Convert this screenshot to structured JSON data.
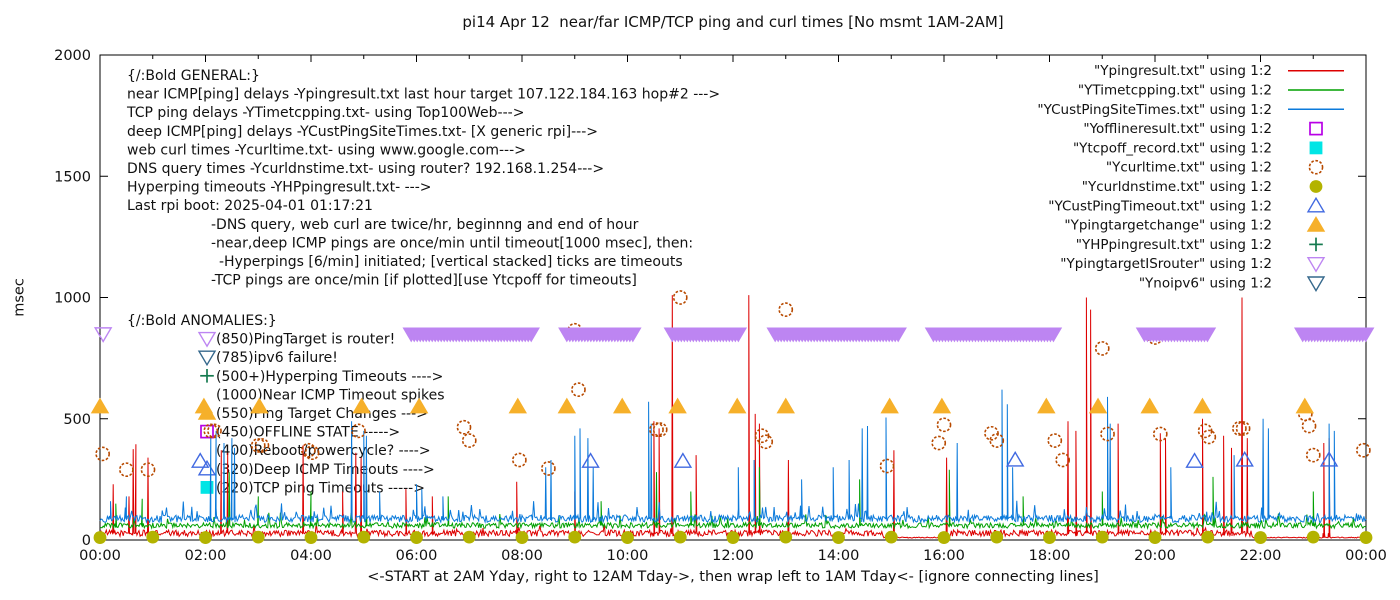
{
  "chart_data": {
    "type": "line",
    "title": "pi14 Apr 12  near/far ICMP/TCP ping and curl times [No msmt 1AM-2AM]",
    "xlabel": "<-START at 2AM Yday, right to 12AM Tday->, then wrap left to 1AM Tday<- [ignore connecting lines]",
    "ylabel": "msec",
    "x_hours_span": 24,
    "x_tick_labels": [
      "00:00",
      "02:00",
      "04:00",
      "06:00",
      "08:00",
      "10:00",
      "12:00",
      "14:00",
      "16:00",
      "18:00",
      "20:00",
      "22:00",
      "00:00"
    ],
    "y_ticks": [
      0,
      500,
      1000,
      1500,
      2000
    ],
    "ylim": [
      0,
      2000
    ],
    "grid": false,
    "legend_position": "top-right-inside",
    "legend": [
      {
        "label": "\"Ypingresult.txt\" using 1:2",
        "sample": "line",
        "color": "#dd0000"
      },
      {
        "label": "\"YTimetcpping.txt\" using 1:2",
        "sample": "line",
        "color": "#00a000"
      },
      {
        "label": "\"YCustPingSiteTimes.txt\" using 1:2",
        "sample": "line",
        "color": "#0b7adb"
      },
      {
        "label": "\"Yofflineresult.txt\" using 1:2",
        "sample": "square-open",
        "color": "#b800e6"
      },
      {
        "label": "\"Ytcpoff_record.txt\" using 1:2",
        "sample": "square-filled",
        "color": "#00e5e5"
      },
      {
        "label": "\"Ycurltime.txt\" using 1:2",
        "sample": "circle-open",
        "color": "#b84a00"
      },
      {
        "label": "\"Ycurldnstime.txt\" using 1:2",
        "sample": "circle-filled",
        "color": "#b3b300"
      },
      {
        "label": "\"YCustPingTimeout.txt\" using 1:2",
        "sample": "triangle-up-open",
        "color": "#4169e1"
      },
      {
        "label": "\"Ypingtargetchange\" using 1:2",
        "sample": "triangle-up-filled",
        "color": "#f6b02a"
      },
      {
        "label": "\"YHPpingresult.txt\" using 1:2",
        "sample": "plus",
        "color": "#157a4f"
      },
      {
        "label": "\"YpingtargetISrouter\" using 1:2",
        "sample": "triangle-down-open",
        "color": "#bd85f2"
      },
      {
        "label": "\"Ynoipv6\" using 1:2",
        "sample": "triangle-down-open",
        "color": "#35688c"
      }
    ],
    "series": [
      {
        "name": "Ypingresult.txt",
        "type": "line",
        "color": "#dd0000",
        "baseline": 28,
        "noise": 13,
        "bump": [
          0.03,
          30
        ],
        "dips": [
          [
            14.85,
            16.1,
            8
          ],
          [
            21.85,
            24,
            8
          ]
        ],
        "spikes": [
          [
            0.25,
            230
          ],
          [
            0.55,
            180
          ],
          [
            0.63,
            375
          ],
          [
            0.68,
            395
          ],
          [
            0.91,
            340
          ],
          [
            2.3,
            370
          ],
          [
            2.42,
            360
          ],
          [
            3.85,
            390
          ],
          [
            4.6,
            200
          ],
          [
            4.85,
            360
          ],
          [
            4.95,
            340
          ],
          [
            5.8,
            210
          ],
          [
            6.3,
            180
          ],
          [
            7.9,
            240
          ],
          [
            9.0,
            200
          ],
          [
            10.5,
            490
          ],
          [
            10.6,
            460
          ],
          [
            10.85,
            1010
          ],
          [
            11.3,
            350
          ],
          [
            12.3,
            1010
          ],
          [
            12.42,
            520
          ],
          [
            12.5,
            480
          ],
          [
            13.05,
            330
          ],
          [
            15.05,
            370
          ],
          [
            16.05,
            340
          ],
          [
            18.35,
            490
          ],
          [
            18.5,
            450
          ],
          [
            18.7,
            1000
          ],
          [
            18.78,
            950
          ],
          [
            19.3,
            480
          ],
          [
            20.1,
            440
          ],
          [
            20.2,
            420
          ],
          [
            20.9,
            500
          ],
          [
            21.3,
            430
          ],
          [
            21.45,
            380
          ],
          [
            21.65,
            1000
          ],
          [
            21.75,
            420
          ],
          [
            23.2,
            400
          ],
          [
            23.3,
            420
          ]
        ]
      },
      {
        "name": "YTimetcpping.txt",
        "type": "line",
        "color": "#00a000",
        "baseline": 60,
        "noise": 11,
        "bump": [
          0.05,
          45
        ],
        "spikes": [
          [
            0.3,
            150
          ],
          [
            0.8,
            170
          ],
          [
            2.45,
            280
          ],
          [
            3.0,
            180
          ],
          [
            4.0,
            200
          ],
          [
            5.05,
            300
          ],
          [
            6.6,
            180
          ],
          [
            9.5,
            160
          ],
          [
            10.55,
            280
          ],
          [
            11.2,
            200
          ],
          [
            12.5,
            300
          ],
          [
            14.4,
            250
          ],
          [
            16.1,
            290
          ],
          [
            17.5,
            180
          ],
          [
            19.0,
            200
          ],
          [
            21.1,
            260
          ],
          [
            23.0,
            200
          ]
        ]
      },
      {
        "name": "YCustPingSiteTimes.txt",
        "type": "line",
        "color": "#0b7adb",
        "baseline": 88,
        "noise": 15,
        "bump": [
          0.07,
          60
        ],
        "spikes": [
          [
            0.2,
            160
          ],
          [
            0.5,
            180
          ],
          [
            2.1,
            430
          ],
          [
            2.2,
            450
          ],
          [
            2.35,
            400
          ],
          [
            2.5,
            420
          ],
          [
            2.55,
            380
          ],
          [
            4.77,
            490
          ],
          [
            5.0,
            450
          ],
          [
            5.05,
            430
          ],
          [
            5.3,
            200
          ],
          [
            6.0,
            230
          ],
          [
            6.1,
            210
          ],
          [
            6.5,
            180
          ],
          [
            8.45,
            300
          ],
          [
            8.55,
            330
          ],
          [
            9.0,
            430
          ],
          [
            9.1,
            460
          ],
          [
            9.25,
            420
          ],
          [
            9.35,
            300
          ],
          [
            10.4,
            570
          ],
          [
            10.45,
            480
          ],
          [
            12.1,
            300
          ],
          [
            12.4,
            330
          ],
          [
            13.3,
            250
          ],
          [
            13.9,
            300
          ],
          [
            14.2,
            330
          ],
          [
            14.45,
            460
          ],
          [
            14.55,
            470
          ],
          [
            14.9,
            505
          ],
          [
            16.25,
            400
          ],
          [
            17.1,
            620
          ],
          [
            17.2,
            560
          ],
          [
            17.3,
            300
          ],
          [
            19.1,
            590
          ],
          [
            19.15,
            480
          ],
          [
            20.3,
            300
          ],
          [
            21.5,
            350
          ],
          [
            22.05,
            500
          ],
          [
            22.15,
            460
          ],
          [
            23.3,
            480
          ],
          [
            23.4,
            450
          ]
        ]
      },
      {
        "name": "Yofflineresult.txt",
        "type": "points",
        "marker": "square-open",
        "color": "#b800e6",
        "nominal_value": 450,
        "points": []
      },
      {
        "name": "Ytcpoff_record.txt",
        "type": "points",
        "marker": "square-filled",
        "color": "#00e5e5",
        "nominal_value": 220,
        "points": []
      },
      {
        "name": "Ycurltime.txt",
        "type": "points",
        "marker": "circle-open",
        "color": "#b84a00",
        "points": [
          [
            0.05,
            355
          ],
          [
            0.5,
            290
          ],
          [
            0.91,
            290
          ],
          [
            2.1,
            450
          ],
          [
            2.17,
            450
          ],
          [
            3.0,
            390
          ],
          [
            3.07,
            390
          ],
          [
            3.95,
            370
          ],
          [
            4.02,
            360
          ],
          [
            4.9,
            450
          ],
          [
            6.9,
            465
          ],
          [
            7.0,
            410
          ],
          [
            7.95,
            330
          ],
          [
            8.5,
            295
          ],
          [
            9.0,
            865
          ],
          [
            9.07,
            620
          ],
          [
            10.55,
            455
          ],
          [
            10.62,
            455
          ],
          [
            11.0,
            1000
          ],
          [
            12.55,
            430
          ],
          [
            12.62,
            405
          ],
          [
            13.0,
            950
          ],
          [
            14.92,
            305
          ],
          [
            15.9,
            400
          ],
          [
            16.0,
            475
          ],
          [
            16.9,
            440
          ],
          [
            17.0,
            410
          ],
          [
            18.1,
            410
          ],
          [
            18.25,
            330
          ],
          [
            19.0,
            790
          ],
          [
            19.1,
            437
          ],
          [
            20.0,
            835
          ],
          [
            20.1,
            437
          ],
          [
            20.95,
            450
          ],
          [
            21.02,
            425
          ],
          [
            21.6,
            460
          ],
          [
            21.67,
            460
          ],
          [
            22.85,
            520
          ],
          [
            22.92,
            470
          ],
          [
            23.0,
            350
          ],
          [
            23.95,
            370
          ]
        ]
      },
      {
        "name": "Ycurldnstime.txt",
        "type": "points",
        "marker": "circle-filled",
        "color": "#b3b300",
        "points": [
          [
            0,
            10
          ],
          [
            1,
            12
          ],
          [
            2,
            10
          ],
          [
            3,
            12
          ],
          [
            4,
            10
          ],
          [
            5,
            12
          ],
          [
            6,
            10
          ],
          [
            7,
            12
          ],
          [
            8,
            10
          ],
          [
            9,
            12
          ],
          [
            10,
            10
          ],
          [
            11,
            12
          ],
          [
            12,
            10
          ],
          [
            13,
            12
          ],
          [
            14,
            10
          ],
          [
            15,
            12
          ],
          [
            16,
            10
          ],
          [
            17,
            12
          ],
          [
            18,
            10
          ],
          [
            19,
            12
          ],
          [
            20,
            10
          ],
          [
            21,
            12
          ],
          [
            22,
            10
          ],
          [
            23,
            12
          ],
          [
            24,
            10
          ]
        ]
      },
      {
        "name": "YCustPingTimeout.txt",
        "type": "points",
        "marker": "triangle-up-open",
        "color": "#4169e1",
        "nominal_value": 320,
        "points": [
          [
            1.9,
            325
          ],
          [
            9.3,
            325
          ],
          [
            11.05,
            325
          ],
          [
            17.35,
            330
          ],
          [
            20.75,
            325
          ],
          [
            21.7,
            330
          ],
          [
            23.3,
            330
          ]
        ]
      },
      {
        "name": "Ypingtargetchange",
        "type": "points",
        "marker": "triangle-up-filled",
        "color": "#f6b02a",
        "nominal_value": 550,
        "points": [
          [
            0,
            550
          ],
          [
            1.97,
            550
          ],
          [
            3.02,
            550
          ],
          [
            4.96,
            550
          ],
          [
            6.05,
            550
          ],
          [
            7.92,
            550
          ],
          [
            8.85,
            550
          ],
          [
            9.9,
            550
          ],
          [
            10.95,
            550
          ],
          [
            12.08,
            550
          ],
          [
            13.0,
            550
          ],
          [
            14.97,
            550
          ],
          [
            15.96,
            550
          ],
          [
            17.94,
            550
          ],
          [
            18.92,
            550
          ],
          [
            19.9,
            550
          ],
          [
            20.9,
            550
          ],
          [
            22.84,
            550
          ]
        ]
      },
      {
        "name": "YHPpingresult.txt",
        "type": "points",
        "marker": "plus",
        "color": "#157a4f",
        "nominal_value": 500,
        "points": []
      },
      {
        "name": "YpingtargetISrouter",
        "type": "bands",
        "marker": "triangle-down-filled",
        "color": "#bd85f2",
        "value": 850,
        "bands": [
          [
            5.9,
            8.2
          ],
          [
            8.85,
            10.15
          ],
          [
            10.85,
            12.15
          ],
          [
            12.8,
            15.15
          ],
          [
            15.8,
            18.1
          ],
          [
            19.8,
            21.0
          ],
          [
            22.8,
            24.0
          ]
        ],
        "points": [
          [
            0.06,
            850
          ]
        ]
      },
      {
        "name": "Ynoipv6",
        "type": "points",
        "marker": "triangle-down-open",
        "color": "#35688c",
        "nominal_value": 785,
        "points": []
      }
    ],
    "annotations": {
      "general": {
        "x": 127,
        "y0": 75,
        "line_height": 18.6,
        "lines": [
          {
            "text": "{/:Bold GENERAL:}",
            "indent": 0
          },
          {
            "text": "near ICMP[ping] delays -Ypingresult.txt last hour target 107.122.184.163 hop#2 --->",
            "indent": 0
          },
          {
            "text": "TCP ping delays -YTimetcpping.txt- using Top100Web--->",
            "indent": 0
          },
          {
            "text": "deep ICMP[ping] delays -YCustPingSiteTimes.txt- [X generic rpi]--->",
            "indent": 0
          },
          {
            "text": "web curl times -Ycurltime.txt- using www.google.com--->",
            "indent": 0
          },
          {
            "text": "DNS query times -Ycurldnstime.txt- using router? 192.168.1.254--->",
            "indent": 0
          },
          {
            "text": "Hyperping timeouts -YHPpingresult.txt- --->",
            "indent": 0
          },
          {
            "text": "Last rpi boot: 2025-04-01 01:17:21",
            "indent": 0
          },
          {
            "text": "-DNS query, web curl are twice/hr, beginnng and end of hour",
            "indent": 84
          },
          {
            "text": "-near,deep ICMP pings are once/min until timeout[1000 msec], then:",
            "indent": 84
          },
          {
            "text": "-Hyperpings [6/min] initiated; [vertical stacked] ticks are timeouts",
            "indent": 92
          },
          {
            "text": "-TCP pings are once/min [if plotted][use Ytcpoff for timeouts]",
            "indent": 84
          }
        ]
      },
      "anomalies": {
        "x": 127,
        "y0": 320,
        "line_height": 18.6,
        "marker_indent": 80,
        "text_indent": 89,
        "lines": [
          {
            "text": "{/:Bold ANOMALIES:}",
            "header": true
          },
          {
            "text": "(850)PingTarget is router!",
            "marker": "triangle-down-open",
            "marker_color": "#bd85f2"
          },
          {
            "text": "(785)ipv6 failure!",
            "marker": "triangle-down-open",
            "marker_color": "#35688c"
          },
          {
            "text": "(500+)Hyperping Timeouts ---->",
            "marker": "plus",
            "marker_color": "#157a4f"
          },
          {
            "text": "(1000)Near ICMP Timeout spikes"
          },
          {
            "text": "(550)Ping Target Changes --->",
            "marker": "triangle-up-filled",
            "marker_color": "#f6b02a"
          },
          {
            "text": "(450)OFFLINE STATE ----->",
            "marker": "square-open",
            "marker_color": "#b800e6"
          },
          {
            "text": "(400)Reboot/powercycle? ---->"
          },
          {
            "text": "(320)Deep ICMP Timeouts ---->",
            "marker": "triangle-up-open",
            "marker_color": "#4169e1"
          },
          {
            "text": "(220)TCP ping Timeouts ----->",
            "marker": "square-filled",
            "marker_color": "#00e5e5"
          }
        ]
      }
    }
  }
}
